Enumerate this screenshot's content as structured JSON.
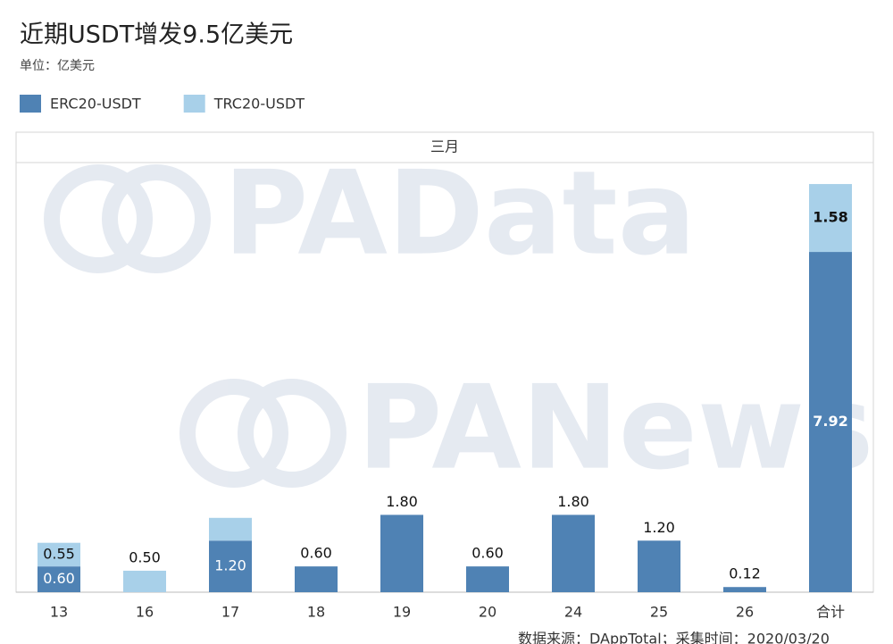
{
  "chart_data": {
    "type": "stacked_bar",
    "title": "近期USDT增发9.5亿美元",
    "subtitle": "单位：亿美元",
    "panel_label": "三月",
    "watermarks": [
      "PAData",
      "PANews"
    ],
    "source": "数据来源：DAppTotal；采集时间：2020/03/20",
    "categories": [
      "13",
      "16",
      "17",
      "18",
      "19",
      "20",
      "24",
      "25",
      "26",
      "合计"
    ],
    "series": [
      {
        "name": "ERC20-USDT",
        "color": "#4f82b4",
        "values": [
          0.6,
          null,
          1.2,
          0.6,
          1.8,
          0.6,
          1.8,
          1.2,
          0.12,
          7.92
        ],
        "value_labels": [
          "0.60",
          null,
          "1.20",
          "0.60",
          "1.80",
          "0.60",
          "1.80",
          "1.20",
          "0.12",
          "7.92"
        ]
      },
      {
        "name": "TRC20-USDT",
        "color": "#a8d0e9",
        "values": [
          0.55,
          0.5,
          0.53,
          null,
          null,
          null,
          null,
          null,
          null,
          1.58
        ],
        "value_labels": [
          "0.55",
          "0.50",
          null,
          null,
          null,
          null,
          null,
          null,
          null,
          "1.58"
        ]
      }
    ],
    "ylim": [
      0,
      10
    ],
    "legend": "top-left"
  }
}
